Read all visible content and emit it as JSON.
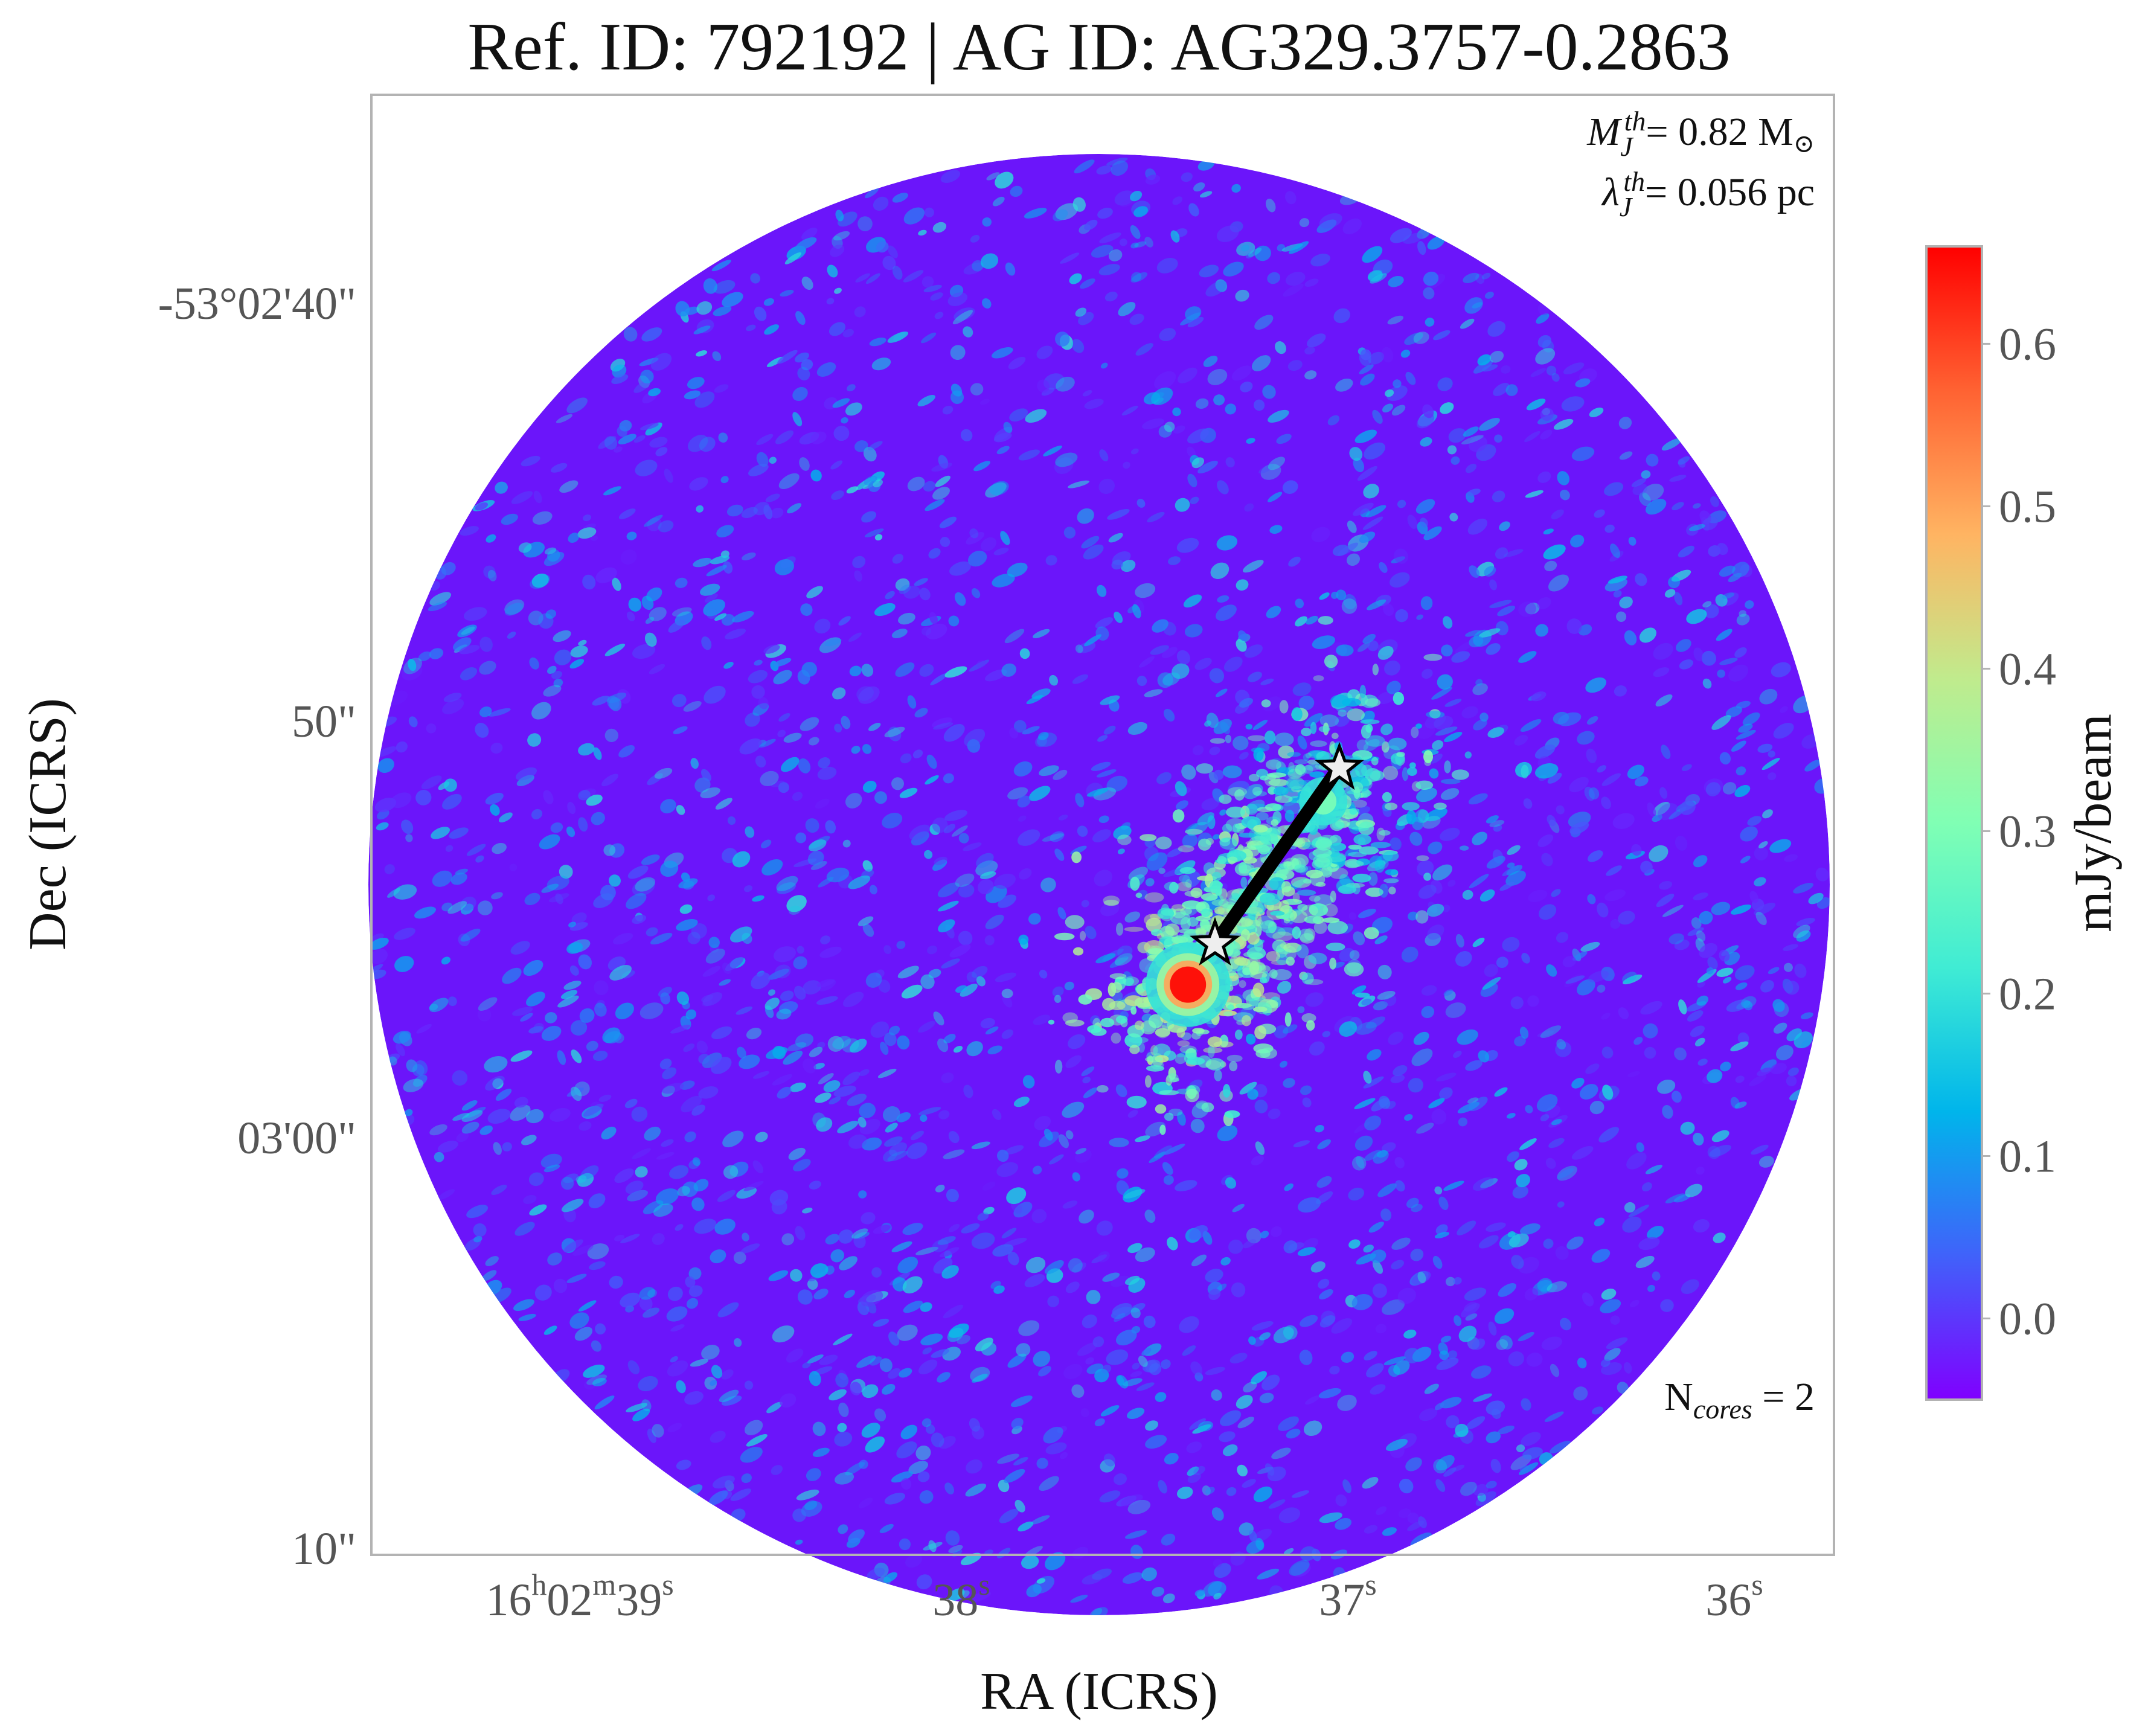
{
  "chart_data": {
    "type": "heatmap",
    "title": "Ref. ID: 792192 | AG ID: AG329.3757-0.2863",
    "xlabel": "RA (ICRS)",
    "ylabel": "Dec (ICRS)",
    "x_ticks": [
      {
        "main": "16",
        "sup1": "h",
        "mid": "02",
        "sup2": "m",
        "end": "39",
        "sup3": "s"
      },
      {
        "main": "38",
        "sup1": "s"
      },
      {
        "main": "37",
        "sup1": "s"
      },
      {
        "main": "36",
        "sup1": "s"
      }
    ],
    "y_ticks": [
      "-53°02'40\"",
      "50\"",
      "03'00\"",
      "10\""
    ],
    "colorbar": {
      "label": "mJy/beam",
      "min": -0.05,
      "max": 0.66,
      "ticks": [
        "0.0",
        "0.1",
        "0.2",
        "0.3",
        "0.4",
        "0.5",
        "0.6"
      ],
      "colormap": "rainbow",
      "colors": [
        "#8000ff",
        "#4062fa",
        "#00b5eb",
        "#40ecd4",
        "#80ffb4",
        "#c0eb8d",
        "#ffb462",
        "#ff6232",
        "#ff0000"
      ]
    },
    "annotations": {
      "mj_symbol": "M",
      "mj_sub": "J",
      "mj_sup": "th",
      "mj_value": "= 0.82 M",
      "sun_symbol": "⊙",
      "lambda_symbol": "λ",
      "lambda_sub": "J",
      "lambda_sup": "th",
      "lambda_value": "= 0.056 pc",
      "ncores_prefix": "N",
      "ncores_sub": "cores",
      "ncores_value": " = 2"
    },
    "cores": [
      {
        "ra_s": 37.32,
        "dec_arcsec": 55.0,
        "peak": 0.66
      },
      {
        "ra_s": 36.97,
        "dec_arcsec": 50.6,
        "peak": 0.3
      }
    ],
    "field_center": {
      "ra_s": 37.55,
      "dec_arcsec": 52.6
    },
    "field_radius_arcsec": 17.5,
    "background_mean": 0.0,
    "grid": false
  }
}
